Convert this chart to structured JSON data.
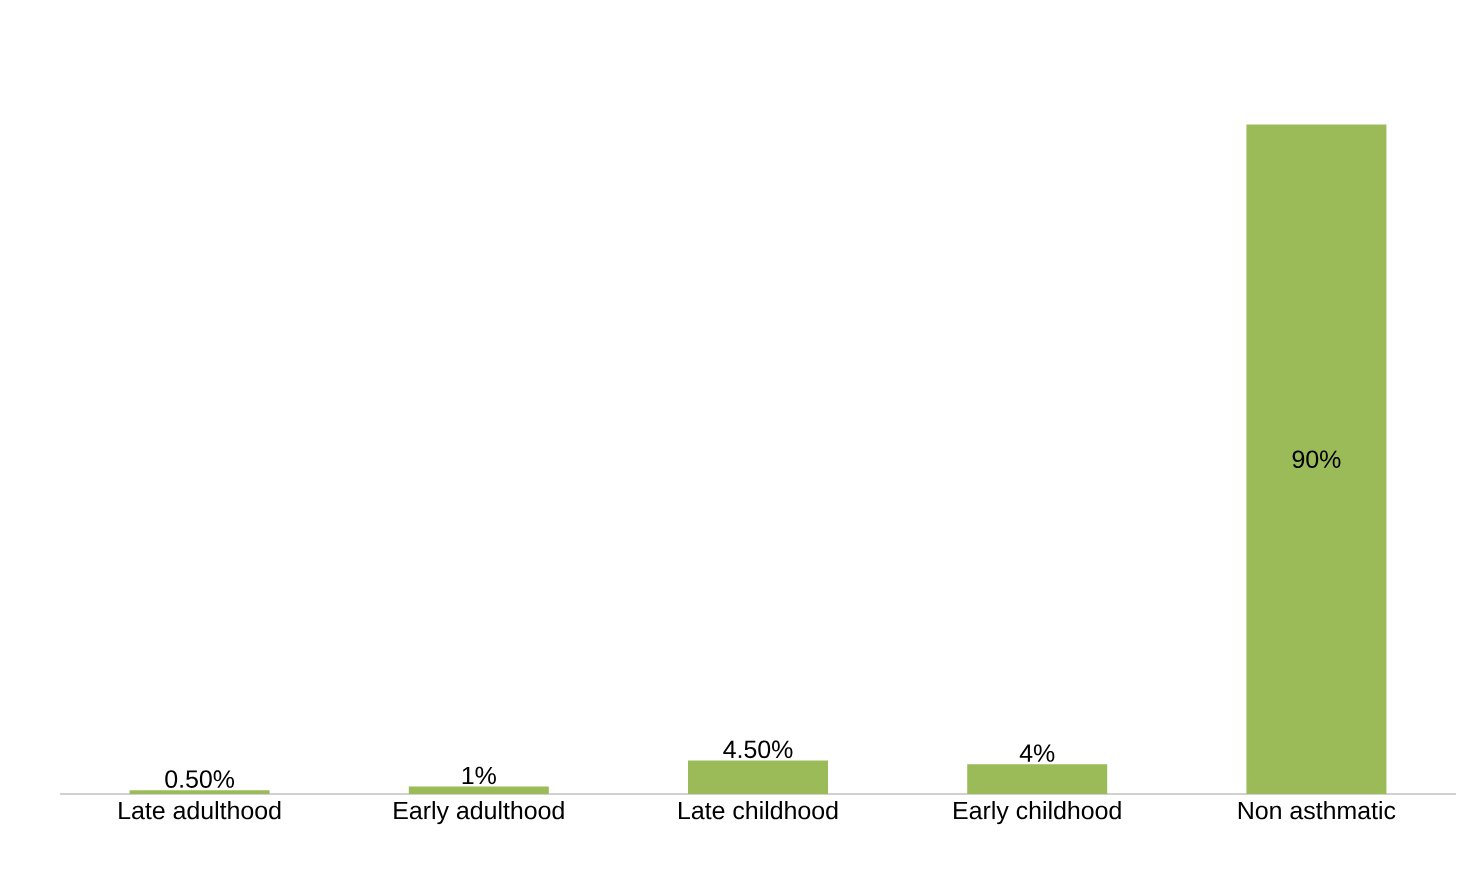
{
  "chart_data": {
    "type": "bar",
    "categories": [
      "Late adulthood",
      "Early adulthood",
      "Late childhood",
      "Early childhood",
      "Non asthmatic"
    ],
    "values": [
      0.5,
      1,
      4.5,
      4,
      90
    ],
    "value_labels": [
      "0.50%",
      "1%",
      "4.50%",
      "4%",
      "90%"
    ],
    "color": "#9bbb59"
  }
}
